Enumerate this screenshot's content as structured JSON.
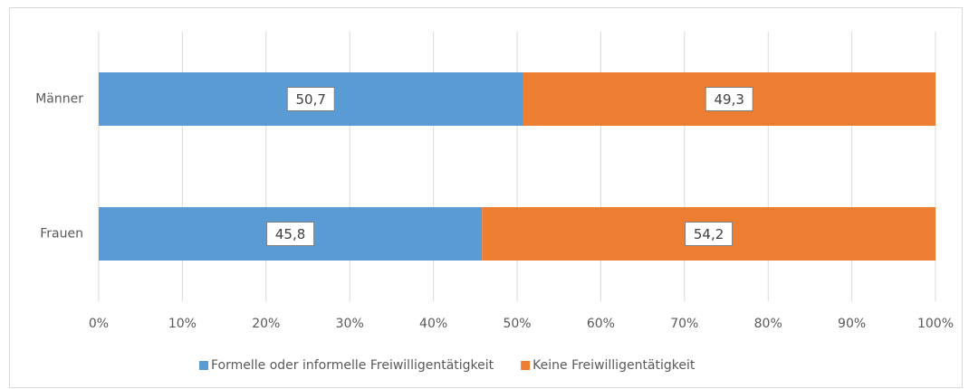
{
  "chart_data": {
    "type": "bar",
    "orientation": "horizontal",
    "stacked": true,
    "categories": [
      "Männer",
      "Frauen"
    ],
    "series": [
      {
        "name": "Formelle oder informelle Freiwilligentätigkeit",
        "color": "#5b9bd5",
        "values": [
          50.7,
          45.8
        ],
        "value_labels": [
          "50,7",
          "45,8"
        ]
      },
      {
        "name": "Keine Freiwilligentätigkeit",
        "color": "#ed7d31",
        "values": [
          49.3,
          54.2
        ],
        "value_labels": [
          "49,3",
          "54,2"
        ]
      }
    ],
    "xlim": [
      0,
      100
    ],
    "xticks": [
      {
        "value": 0,
        "label": "0%"
      },
      {
        "value": 10,
        "label": "10%"
      },
      {
        "value": 20,
        "label": "20%"
      },
      {
        "value": 30,
        "label": "30%"
      },
      {
        "value": 40,
        "label": "40%"
      },
      {
        "value": 50,
        "label": "50%"
      },
      {
        "value": 60,
        "label": "60%"
      },
      {
        "value": 70,
        "label": "70%"
      },
      {
        "value": 80,
        "label": "80%"
      },
      {
        "value": 90,
        "label": "90%"
      },
      {
        "value": 100,
        "label": "100%"
      }
    ],
    "grid": true,
    "legend": "bottom"
  }
}
